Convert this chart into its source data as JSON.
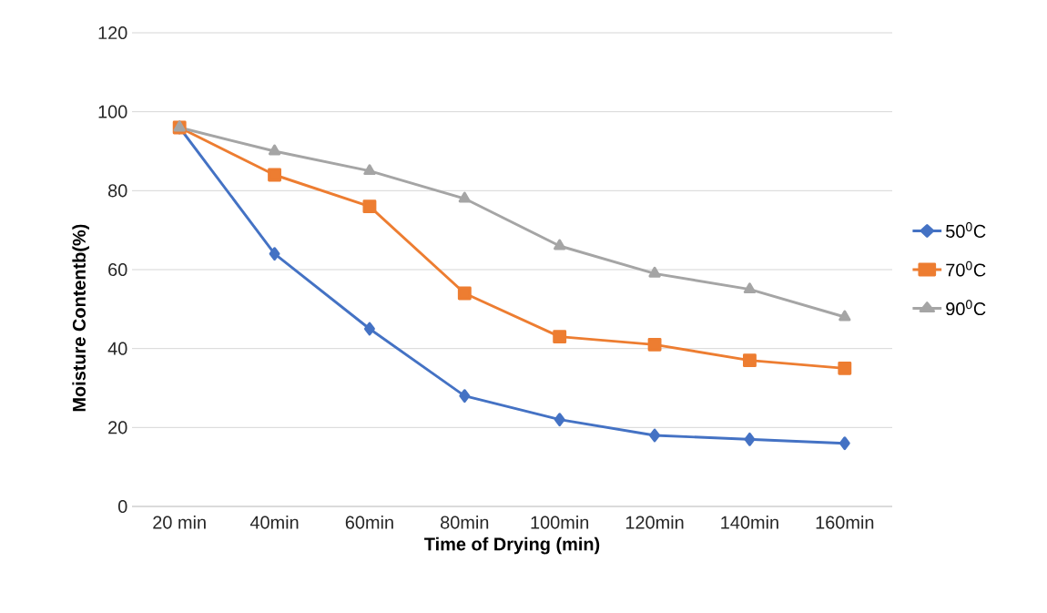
{
  "chart_data": {
    "type": "line",
    "xlabel": "Time of Drying (min)",
    "ylabel": "Moisture Contentb(%)",
    "categories": [
      "20 min",
      "40min",
      "60min",
      "80min",
      "100min",
      "120min",
      "140min",
      "160min"
    ],
    "series": [
      {
        "name": "50$^{0}$C",
        "color": "#4472c4",
        "marker": "diamond",
        "values": [
          96,
          64,
          45,
          28,
          22,
          18,
          17,
          16
        ]
      },
      {
        "name": "70$^{0}$C",
        "color": "#ed7d31",
        "marker": "square",
        "values": [
          96,
          84,
          76,
          54,
          43,
          41,
          37,
          35
        ]
      },
      {
        "name": "90$^{0}$C",
        "color": "#a5a5a5",
        "marker": "triangle",
        "values": [
          96,
          90,
          85,
          78,
          66,
          59,
          55,
          48
        ]
      }
    ],
    "ylim": [
      0,
      120
    ],
    "yticks": [
      0,
      20,
      40,
      60,
      80,
      100,
      120
    ],
    "grid": "y",
    "legend": "right",
    "line_style": "solid"
  }
}
